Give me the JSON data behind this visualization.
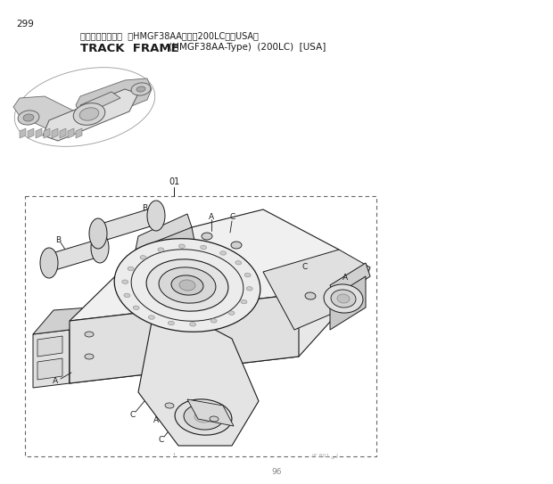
{
  "page_number": "299",
  "title_japanese": "トラックフレーム  （HMGF38AA型）（200LC）［USA］",
  "title_english_bold": "TRACK  FRAME",
  "title_english_small": " (HMGF38AA-Type)  (200LC)  [USA]",
  "label_01": "01",
  "page_marker": "96",
  "bg_color": "#ffffff",
  "line_color": "#1a1a1a",
  "gray_light": "#d8d8d8",
  "gray_mid": "#b0b0b0",
  "gray_dark": "#888888",
  "dashed_color": "#666666",
  "fig_width": 6.2,
  "fig_height": 5.43,
  "dpi": 100
}
